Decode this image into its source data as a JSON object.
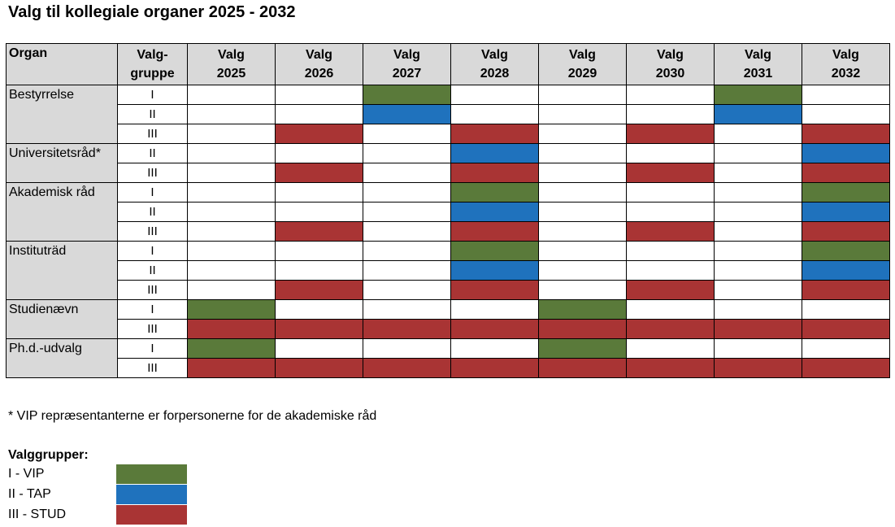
{
  "title": "Valg til kollegiale organer 2025 - 2032",
  "colors": {
    "I": "#5a7a3a",
    "II": "#1f72bd",
    "III": "#a93434",
    "header_bg": "#d9d9d9"
  },
  "table": {
    "organ_header": "Organ",
    "group_header": [
      "Valg-",
      "gruppe"
    ],
    "years": [
      [
        "Valg",
        "2025"
      ],
      [
        "Valg",
        "2026"
      ],
      [
        "Valg",
        "2027"
      ],
      [
        "Valg",
        "2028"
      ],
      [
        "Valg",
        "2029"
      ],
      [
        "Valg",
        "2030"
      ],
      [
        "Valg",
        "2031"
      ],
      [
        "Valg",
        "2032"
      ]
    ],
    "organs": [
      {
        "name": "Bestyrrelse",
        "rows": [
          {
            "group": "I",
            "fill": [
              null,
              null,
              "I",
              null,
              null,
              null,
              "I",
              null
            ]
          },
          {
            "group": "II",
            "fill": [
              null,
              null,
              "II",
              null,
              null,
              null,
              "II",
              null
            ]
          },
          {
            "group": "III",
            "fill": [
              null,
              "III",
              null,
              "III",
              null,
              "III",
              null,
              "III"
            ]
          }
        ]
      },
      {
        "name": "Universitetsråd*",
        "rows": [
          {
            "group": "II",
            "fill": [
              null,
              null,
              null,
              "II",
              null,
              null,
              null,
              "II"
            ]
          },
          {
            "group": "III",
            "fill": [
              null,
              "III",
              null,
              "III",
              null,
              "III",
              null,
              "III"
            ]
          }
        ]
      },
      {
        "name": "Akademisk råd",
        "rows": [
          {
            "group": "I",
            "fill": [
              null,
              null,
              null,
              "I",
              null,
              null,
              null,
              "I"
            ]
          },
          {
            "group": "II",
            "fill": [
              null,
              null,
              null,
              "II",
              null,
              null,
              null,
              "II"
            ]
          },
          {
            "group": "III",
            "fill": [
              null,
              "III",
              null,
              "III",
              null,
              "III",
              null,
              "III"
            ]
          }
        ]
      },
      {
        "name": "Instituträd",
        "rows": [
          {
            "group": "I",
            "fill": [
              null,
              null,
              null,
              "I",
              null,
              null,
              null,
              "I"
            ]
          },
          {
            "group": "II",
            "fill": [
              null,
              null,
              null,
              "II",
              null,
              null,
              null,
              "II"
            ]
          },
          {
            "group": "III",
            "fill": [
              null,
              "III",
              null,
              "III",
              null,
              "III",
              null,
              "III"
            ]
          }
        ]
      },
      {
        "name": "Studienævn",
        "rows": [
          {
            "group": "I",
            "fill": [
              "I",
              null,
              null,
              null,
              "I",
              null,
              null,
              null
            ]
          },
          {
            "group": "III",
            "fill": [
              "III",
              "III",
              "III",
              "III",
              "III",
              "III",
              "III",
              "III"
            ]
          }
        ]
      },
      {
        "name": "Ph.d.-udvalg",
        "rows": [
          {
            "group": "I",
            "fill": [
              "I",
              null,
              null,
              null,
              "I",
              null,
              null,
              null
            ]
          },
          {
            "group": "III",
            "fill": [
              "III",
              "III",
              "III",
              "III",
              "III",
              "III",
              "III",
              "III"
            ]
          }
        ]
      }
    ]
  },
  "footnote": "* VIP repræsentanterne er forpersonerne for de akademiske råd",
  "legend": {
    "title": "Valggrupper:",
    "items": [
      {
        "key": "I",
        "label": "I - VIP"
      },
      {
        "key": "II",
        "label": "II - TAP"
      },
      {
        "key": "III",
        "label": "III - STUD"
      }
    ]
  }
}
